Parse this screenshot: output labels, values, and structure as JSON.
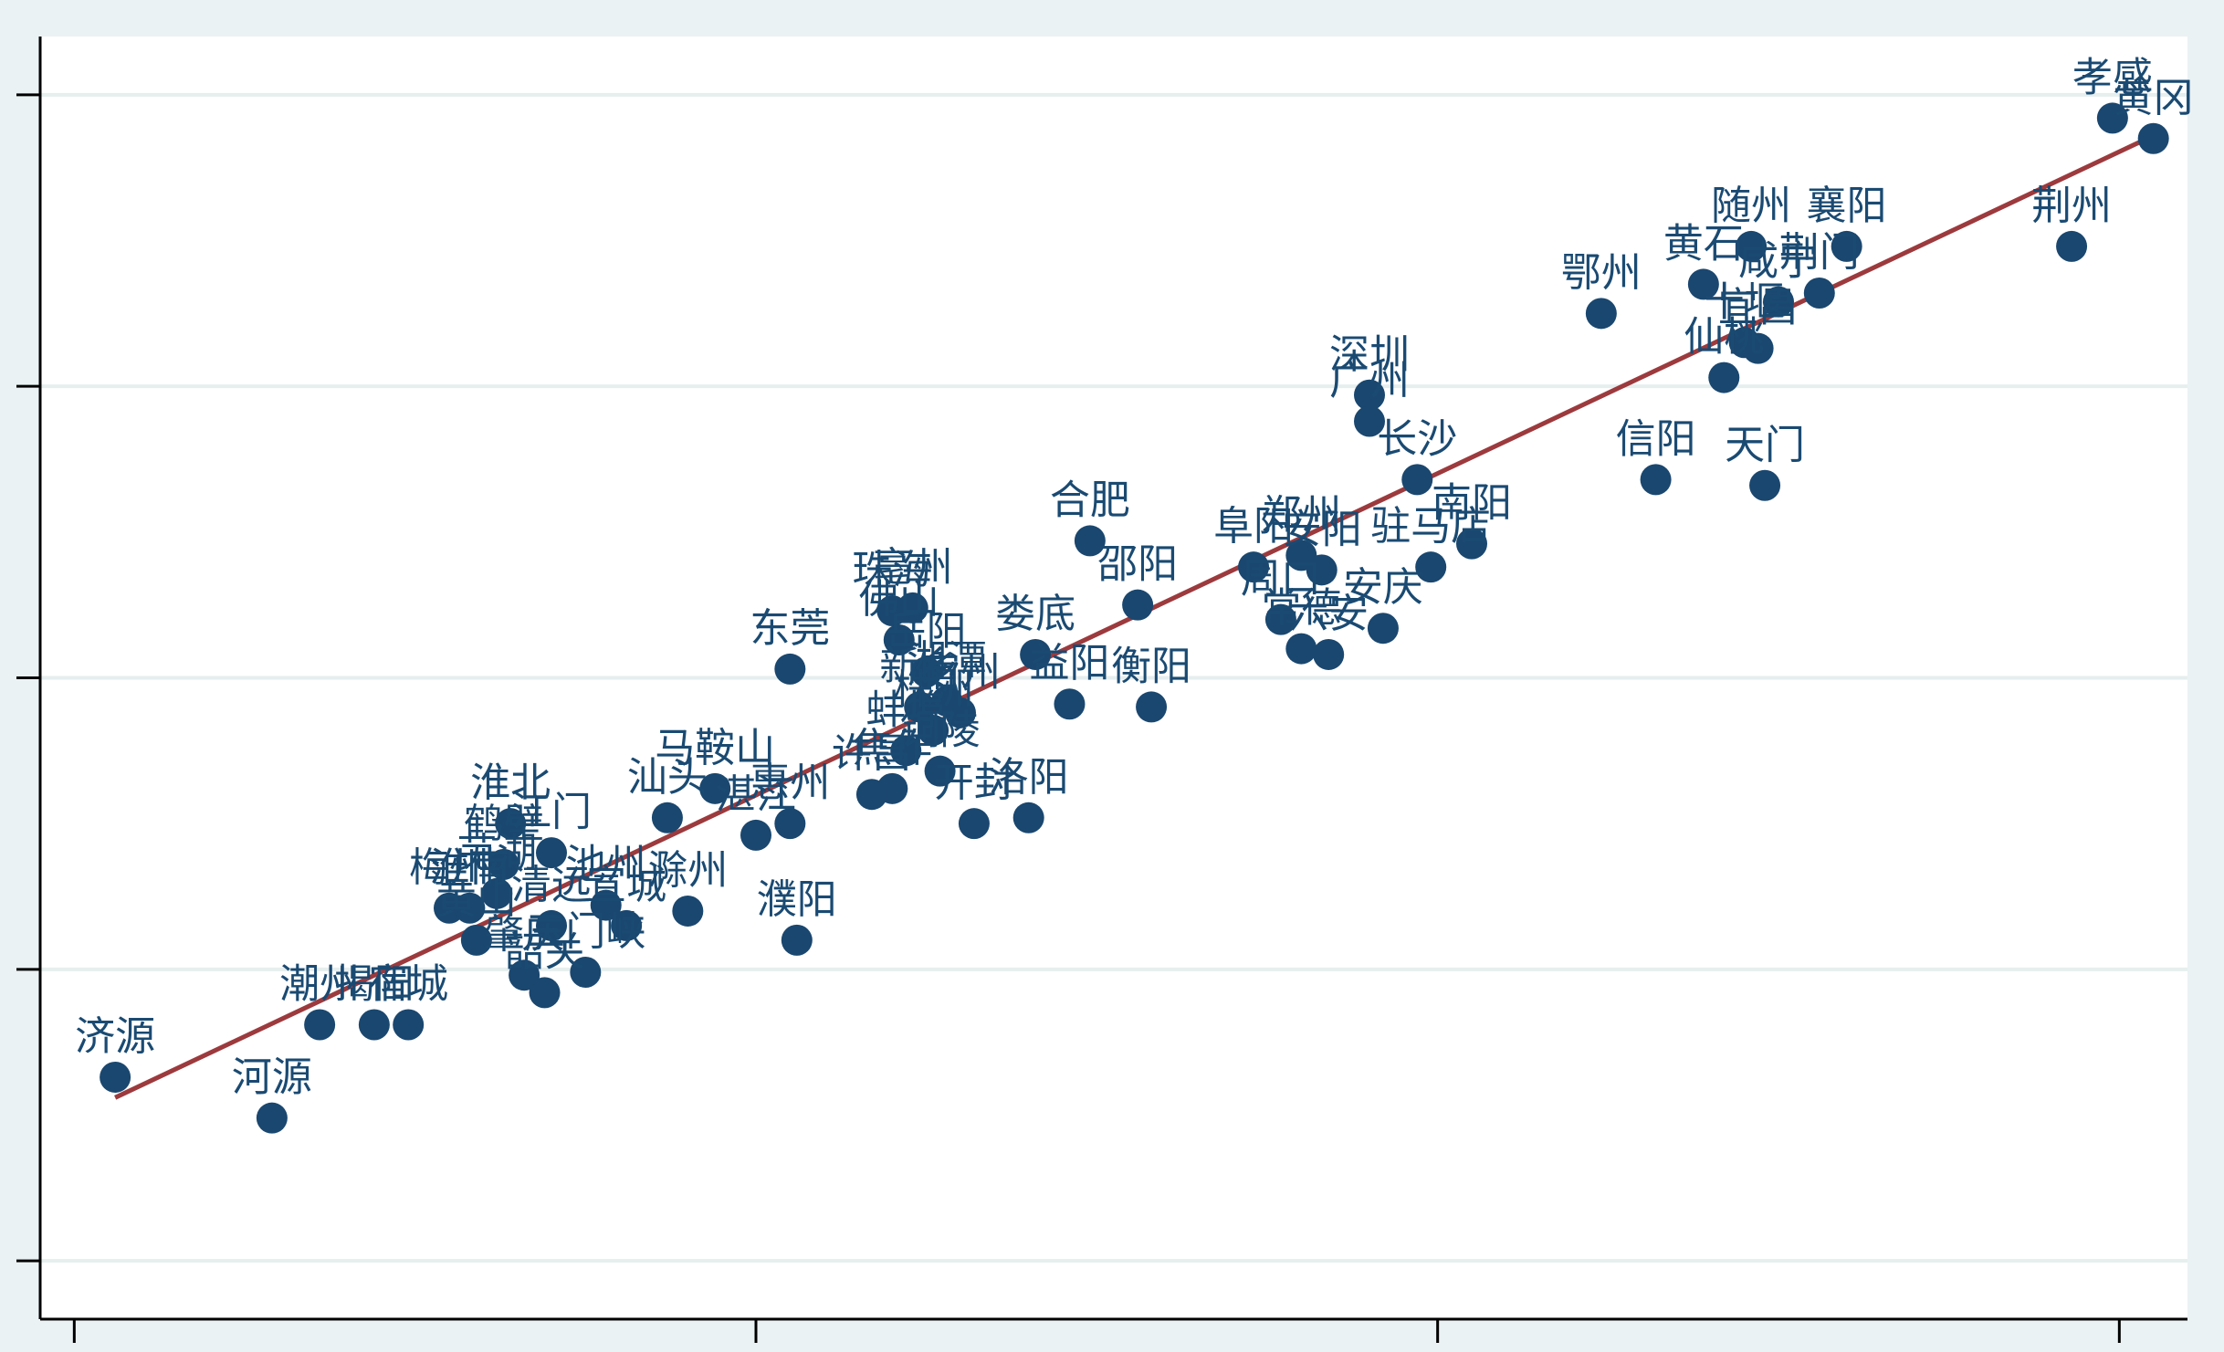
{
  "chart_data": {
    "type": "scatter",
    "title": "",
    "xlabel": "",
    "ylabel": "",
    "grid": true,
    "colors": {
      "point": "#1a476f",
      "fit_line": "#9c3a3d",
      "grid": "#e6eeee",
      "plot_bg": "#ffffff",
      "page_bg": "#eaf2f3"
    },
    "xlim": [
      -0.05,
      3.1
    ],
    "ylim": [
      -0.2,
      4.2
    ],
    "x_ticks": [
      0,
      1,
      2,
      3
    ],
    "y_ticks": [
      0,
      1,
      2,
      3,
      4
    ],
    "fit_line": {
      "x": [
        0.06,
        3.05
      ],
      "y": [
        0.56,
        3.86
      ]
    },
    "points": [
      {
        "label": "孝感",
        "x": 2.99,
        "y": 3.92
      },
      {
        "label": "黄冈",
        "x": 3.05,
        "y": 3.85
      },
      {
        "label": "荆州",
        "x": 2.93,
        "y": 3.48
      },
      {
        "label": "随州",
        "x": 2.46,
        "y": 3.48
      },
      {
        "label": "襄阳",
        "x": 2.6,
        "y": 3.48
      },
      {
        "label": "黄石",
        "x": 2.39,
        "y": 3.35
      },
      {
        "label": "荆门",
        "x": 2.56,
        "y": 3.32
      },
      {
        "label": "咸宁",
        "x": 2.5,
        "y": 3.29
      },
      {
        "label": "鄂州",
        "x": 2.24,
        "y": 3.25
      },
      {
        "label": "十堰",
        "x": 2.45,
        "y": 3.15
      },
      {
        "label": "宜昌",
        "x": 2.47,
        "y": 3.13
      },
      {
        "label": "仙桃",
        "x": 2.42,
        "y": 3.03
      },
      {
        "label": "深圳",
        "x": 1.9,
        "y": 2.97
      },
      {
        "label": "广州",
        "x": 1.9,
        "y": 2.88
      },
      {
        "label": "长沙",
        "x": 1.97,
        "y": 2.68
      },
      {
        "label": "信阳",
        "x": 2.32,
        "y": 2.68
      },
      {
        "label": "天门",
        "x": 2.48,
        "y": 2.66
      },
      {
        "label": "合肥",
        "x": 1.49,
        "y": 2.47
      },
      {
        "label": "南阳",
        "x": 2.05,
        "y": 2.46
      },
      {
        "label": "郑州",
        "x": 1.8,
        "y": 2.42
      },
      {
        "label": "阜阳",
        "x": 1.73,
        "y": 2.38
      },
      {
        "label": "驻马店",
        "x": 1.99,
        "y": 2.38
      },
      {
        "label": "安阳",
        "x": 1.83,
        "y": 2.37
      },
      {
        "label": "邵阳",
        "x": 1.56,
        "y": 2.25
      },
      {
        "label": "周口",
        "x": 1.77,
        "y": 2.2
      },
      {
        "label": "安庆",
        "x": 1.92,
        "y": 2.17
      },
      {
        "label": "常德",
        "x": 1.8,
        "y": 2.1
      },
      {
        "label": "六安",
        "x": 1.84,
        "y": 2.08
      },
      {
        "label": "珠海",
        "x": 1.2,
        "y": 2.23
      },
      {
        "label": "亳州",
        "x": 1.23,
        "y": 2.24
      },
      {
        "label": "佛山",
        "x": 1.21,
        "y": 2.13
      },
      {
        "label": "娄底",
        "x": 1.41,
        "y": 2.08
      },
      {
        "label": "东莞",
        "x": 1.05,
        "y": 2.03
      },
      {
        "label": "衡阳",
        "x": 1.58,
        "y": 1.9
      },
      {
        "label": "益阳",
        "x": 1.46,
        "y": 1.91
      },
      {
        "label": "岳阳",
        "x": 1.25,
        "y": 2.02
      },
      {
        "label": "新乡",
        "x": 1.24,
        "y": 1.9
      },
      {
        "label": "湘潭",
        "x": 1.28,
        "y": 1.92
      },
      {
        "label": "宿州",
        "x": 1.3,
        "y": 1.88
      },
      {
        "label": "株洲",
        "x": 1.26,
        "y": 1.82
      },
      {
        "label": "蚌埠",
        "x": 1.22,
        "y": 1.75
      },
      {
        "label": "马鞍山",
        "x": 0.94,
        "y": 1.62
      },
      {
        "label": "汕头",
        "x": 0.87,
        "y": 1.52
      },
      {
        "label": "铜陵",
        "x": 1.27,
        "y": 1.68
      },
      {
        "label": "焦作",
        "x": 1.2,
        "y": 1.62
      },
      {
        "label": "许昌",
        "x": 1.17,
        "y": 1.6
      },
      {
        "label": "开封",
        "x": 1.32,
        "y": 1.5
      },
      {
        "label": "洛阳",
        "x": 1.4,
        "y": 1.52
      },
      {
        "label": "惠州",
        "x": 1.05,
        "y": 1.5
      },
      {
        "label": "湛江",
        "x": 1.0,
        "y": 1.46
      },
      {
        "label": "淮北",
        "x": 0.64,
        "y": 1.5
      },
      {
        "label": "江门",
        "x": 0.7,
        "y": 1.4
      },
      {
        "label": "鹤壁",
        "x": 0.63,
        "y": 1.36
      },
      {
        "label": "芜湖",
        "x": 0.62,
        "y": 1.26
      },
      {
        "label": "梅州",
        "x": 0.55,
        "y": 1.21
      },
      {
        "label": "淮南",
        "x": 0.58,
        "y": 1.21
      },
      {
        "label": "池州",
        "x": 0.78,
        "y": 1.22
      },
      {
        "label": "滁州",
        "x": 0.9,
        "y": 1.2
      },
      {
        "label": "濮阳",
        "x": 1.06,
        "y": 1.1
      },
      {
        "label": "黄山",
        "x": 0.59,
        "y": 1.1
      },
      {
        "label": "清远",
        "x": 0.7,
        "y": 1.15
      },
      {
        "label": "宣城",
        "x": 0.81,
        "y": 1.15
      },
      {
        "label": "肇庆",
        "x": 0.66,
        "y": 0.98
      },
      {
        "label": "韶关",
        "x": 0.69,
        "y": 0.92
      },
      {
        "label": "三门峡",
        "x": 0.75,
        "y": 0.99
      },
      {
        "label": "潮州",
        "x": 0.36,
        "y": 0.81
      },
      {
        "label": "揭阳",
        "x": 0.44,
        "y": 0.81
      },
      {
        "label": "宿城",
        "x": 0.49,
        "y": 0.81
      },
      {
        "label": "济源",
        "x": 0.06,
        "y": 0.63
      },
      {
        "label": "河源",
        "x": 0.29,
        "y": 0.49
      }
    ]
  }
}
